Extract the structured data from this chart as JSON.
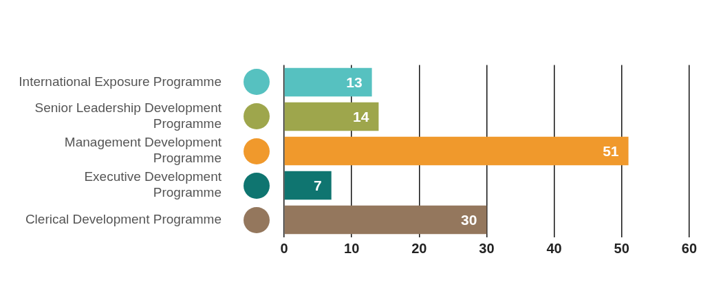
{
  "chart_data": {
    "type": "bar",
    "orientation": "horizontal",
    "categories": [
      "International Exposure Programme",
      "Senior Leadership Development Programme",
      "Management Development Programme",
      "Executive Development Programme",
      "Clerical Development Programme"
    ],
    "values": [
      13,
      14,
      51,
      7,
      30
    ],
    "colors": [
      "#56c1c0",
      "#9ea64c",
      "#f0992c",
      "#0f7570",
      "#94775d"
    ],
    "xlim": [
      0,
      60
    ],
    "xticks": [
      0,
      10,
      20,
      30,
      40,
      50,
      60
    ],
    "grid": "x",
    "data_labels": true,
    "legend": false
  }
}
